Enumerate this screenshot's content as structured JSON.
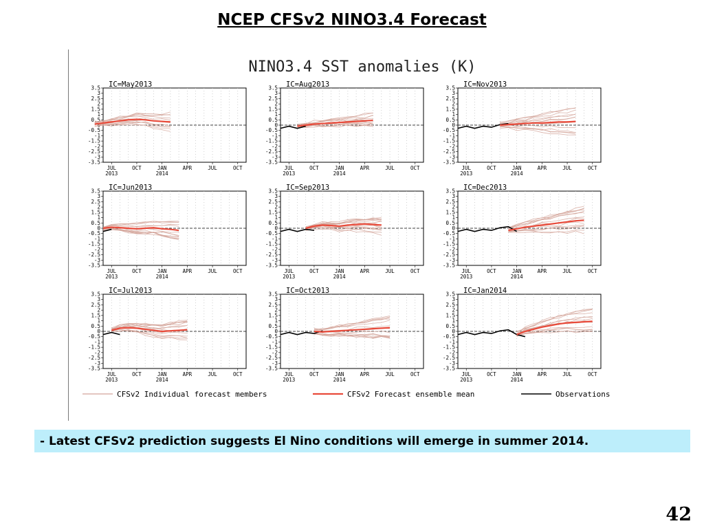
{
  "slide": {
    "title": "NCEP CFSv2 NINO3.4 Forecast",
    "caption": "- Latest CFSv2 prediction suggests El Nino conditions will emerge in summer 2014.",
    "page_number": "42"
  },
  "colors": {
    "members": "#d4a59a",
    "mean": "#e84a3a",
    "observations": "#000000",
    "caption_bg": "#bdeefb"
  },
  "chart_data": {
    "type": "line",
    "title": "NINO3.4 SST anomalies (K)",
    "ylim": [
      -3.5,
      3.5
    ],
    "y_ticks": [
      "3.5",
      "3",
      "2.5",
      "2",
      "1.5",
      "1",
      "0.5",
      "0",
      "-0.5",
      "-1",
      "-1.5",
      "-2",
      "-2.5",
      "-3",
      "-3.5"
    ],
    "x_ticks": [
      {
        "label": "JUL",
        "sub": "2013"
      },
      {
        "label": "OCT",
        "sub": ""
      },
      {
        "label": "JAN",
        "sub": "2014"
      },
      {
        "label": "APR",
        "sub": ""
      },
      {
        "label": "JUL",
        "sub": ""
      },
      {
        "label": "OCT",
        "sub": ""
      }
    ],
    "x_range_months": [
      "2013-06",
      "2014-11"
    ],
    "grid": true,
    "legend": {
      "position": "bottom",
      "entries": [
        "CFSv2 Individual forecast members",
        "CFSv2 Forecast ensemble mean",
        "Observations"
      ]
    },
    "observations": {
      "months": [
        "2013-04",
        "2013-05",
        "2013-06",
        "2013-07",
        "2013-08",
        "2013-09",
        "2013-10",
        "2013-11",
        "2013-12",
        "2014-01",
        "2014-02"
      ],
      "values": [
        -0.2,
        -0.3,
        -0.3,
        -0.1,
        -0.3,
        -0.1,
        -0.2,
        0.05,
        0.15,
        -0.3,
        -0.5
      ]
    },
    "panels": [
      {
        "ic": "IC=May2013",
        "start": "2013-05",
        "mean": [
          0.1,
          0.2,
          0.3,
          0.4,
          0.5,
          0.55,
          0.5,
          0.4,
          0.35,
          0.3
        ],
        "spread": 0.8
      },
      {
        "ic": "IC=Aug2013",
        "start": "2013-08",
        "mean": [
          -0.1,
          0.0,
          0.1,
          0.15,
          0.2,
          0.25,
          0.3,
          0.35,
          0.4,
          0.45
        ],
        "spread": 0.9
      },
      {
        "ic": "IC=Nov2013",
        "start": "2013-11",
        "mean": [
          0.0,
          0.05,
          0.1,
          0.15,
          0.2,
          0.2,
          0.25,
          0.3,
          0.3,
          0.35
        ],
        "spread": 1.4
      },
      {
        "ic": "IC=Jun2013",
        "start": "2013-06",
        "mean": [
          0.0,
          0.1,
          0.05,
          0.0,
          -0.05,
          0.0,
          0.05,
          -0.05,
          -0.1,
          -0.2
        ],
        "spread": 0.9
      },
      {
        "ic": "IC=Sep2013",
        "start": "2013-09",
        "mean": [
          0.0,
          0.2,
          0.3,
          0.25,
          0.2,
          0.3,
          0.35,
          0.4,
          0.35,
          0.3
        ],
        "spread": 0.8
      },
      {
        "ic": "IC=Dec2013",
        "start": "2013-12",
        "mean": [
          -0.2,
          -0.05,
          0.1,
          0.2,
          0.3,
          0.4,
          0.5,
          0.6,
          0.7,
          0.75
        ],
        "spread": 1.3
      },
      {
        "ic": "IC=Jul2013",
        "start": "2013-07",
        "mean": [
          0.1,
          0.3,
          0.35,
          0.3,
          0.2,
          0.1,
          0.0,
          0.05,
          0.1,
          0.15
        ],
        "spread": 0.9
      },
      {
        "ic": "IC=Oct2013",
        "start": "2013-10",
        "mean": [
          0.0,
          -0.05,
          0.0,
          0.05,
          0.1,
          0.15,
          0.2,
          0.25,
          0.3,
          0.35
        ],
        "spread": 1.0
      },
      {
        "ic": "IC=Jan2014",
        "start": "2014-01",
        "mean": [
          -0.3,
          0.0,
          0.2,
          0.4,
          0.55,
          0.7,
          0.8,
          0.85,
          0.9,
          0.95
        ],
        "spread": 1.2
      }
    ]
  }
}
